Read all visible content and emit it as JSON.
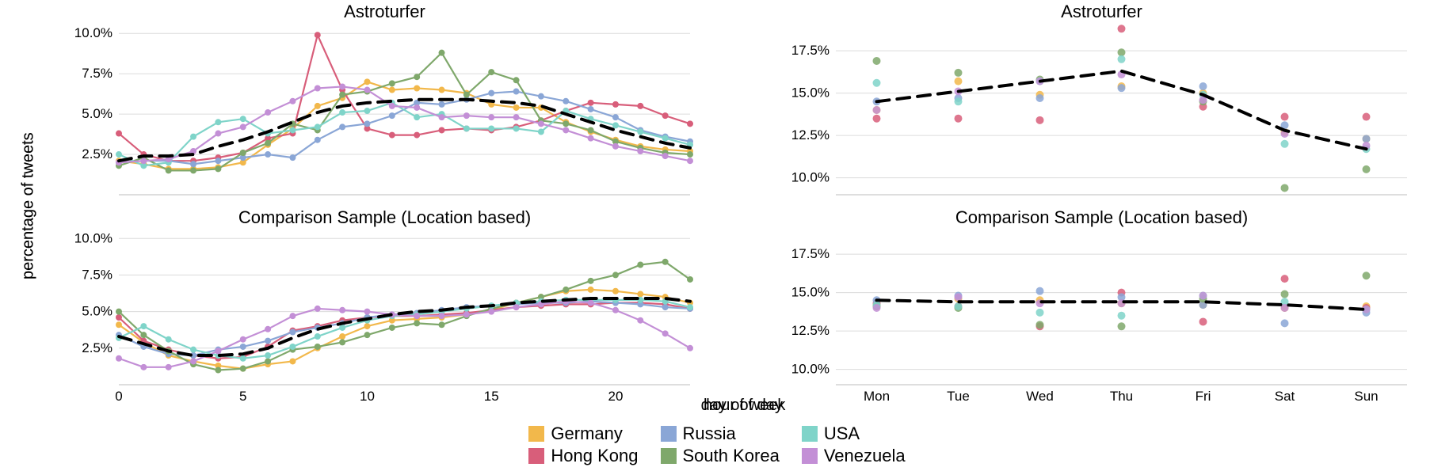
{
  "colors": {
    "Germany": "#f2b84b",
    "Hong Kong": "#d85e7a",
    "Russia": "#8aa6d6",
    "South Korea": "#7fa86b",
    "USA": "#7fd4c9",
    "Venezuela": "#c38fd6",
    "mean_line": "#000000",
    "grid": "#dcdcdc",
    "grid_dark": "#bcbcbc",
    "bg": "#ffffff"
  },
  "series_order": [
    "Germany",
    "Hong Kong",
    "Russia",
    "South Korea",
    "USA",
    "Venezuela"
  ],
  "legend": {
    "rows": [
      [
        "Germany",
        "Russia",
        "USA"
      ],
      [
        "Hong Kong",
        "South Korea",
        "Venezuela"
      ]
    ]
  },
  "style": {
    "title_fontsize": 22,
    "axis_label_fontsize": 20,
    "tick_fontsize": 17,
    "legend_fontsize": 22,
    "line_width": 2.2,
    "marker_radius": 4.0,
    "mean_line_width": 4.0,
    "mean_dash": "16,10"
  },
  "left_column": {
    "y_axis_label": "percentage of tweets",
    "x_axis_label": "hour of day",
    "x": {
      "min": 0,
      "max": 23,
      "ticks": [
        0,
        5,
        10,
        15,
        20
      ]
    },
    "y": {
      "min": 0,
      "max": 10.5,
      "ticks": [
        2.5,
        5.0,
        7.5,
        10.0
      ],
      "fmt": "pct1"
    },
    "panels": [
      {
        "title": "Astroturfer",
        "series": {
          "Germany": [
            2.1,
            1.9,
            1.6,
            1.6,
            1.7,
            2.0,
            3.1,
            4.1,
            5.5,
            6.0,
            7.0,
            6.5,
            6.6,
            6.5,
            6.3,
            5.6,
            5.4,
            5.4,
            4.5,
            3.9,
            3.4,
            3.0,
            2.8,
            2.7
          ],
          "Hong Kong": [
            3.8,
            2.5,
            2.1,
            2.1,
            2.3,
            2.6,
            3.5,
            3.8,
            9.9,
            6.5,
            4.1,
            3.7,
            3.7,
            4.0,
            4.1,
            4.0,
            4.2,
            4.6,
            5.2,
            5.7,
            5.6,
            5.5,
            4.9,
            4.4
          ],
          "Russia": [
            2.0,
            2.1,
            2.1,
            1.9,
            2.1,
            2.3,
            2.5,
            2.3,
            3.4,
            4.2,
            4.4,
            4.9,
            5.7,
            5.6,
            5.9,
            6.3,
            6.4,
            6.1,
            5.8,
            5.3,
            4.8,
            4.0,
            3.6,
            3.3
          ],
          "South Korea": [
            1.8,
            2.3,
            1.5,
            1.5,
            1.6,
            2.6,
            3.2,
            4.4,
            4.0,
            6.2,
            6.4,
            6.9,
            7.3,
            8.8,
            6.2,
            7.6,
            7.1,
            4.6,
            4.4,
            4.0,
            3.3,
            2.9,
            2.6,
            2.5
          ],
          "USA": [
            2.5,
            1.8,
            2.0,
            3.6,
            4.5,
            4.7,
            3.8,
            4.0,
            4.2,
            5.1,
            5.2,
            5.7,
            4.8,
            5.0,
            4.1,
            4.1,
            4.1,
            3.9,
            5.2,
            4.7,
            4.3,
            3.9,
            3.5,
            3.1
          ],
          "Venezuela": [
            2.0,
            2.1,
            2.2,
            2.7,
            3.8,
            4.2,
            5.1,
            5.8,
            6.6,
            6.7,
            6.5,
            5.5,
            5.4,
            4.8,
            4.9,
            4.8,
            4.8,
            4.4,
            4.0,
            3.5,
            3.0,
            2.7,
            2.4,
            2.1
          ]
        },
        "mean": [
          2.1,
          2.4,
          2.4,
          2.5,
          3.0,
          3.4,
          3.9,
          4.5,
          5.1,
          5.5,
          5.7,
          5.8,
          5.9,
          5.9,
          5.9,
          5.8,
          5.7,
          5.5,
          5.0,
          4.5,
          4.0,
          3.6,
          3.2,
          2.9
        ]
      },
      {
        "title": "Comparison Sample (Location based)",
        "series": {
          "Germany": [
            4.1,
            2.9,
            2.0,
            1.6,
            1.3,
            1.1,
            1.4,
            1.6,
            2.5,
            3.3,
            4.0,
            4.4,
            4.5,
            4.6,
            4.8,
            5.1,
            5.6,
            6.0,
            6.4,
            6.5,
            6.4,
            6.2,
            6.0,
            5.6
          ],
          "Hong Kong": [
            4.6,
            3.0,
            2.4,
            2.0,
            1.8,
            1.9,
            2.6,
            3.7,
            4.0,
            4.4,
            4.6,
            4.7,
            4.7,
            4.8,
            4.9,
            5.1,
            5.3,
            5.4,
            5.5,
            5.5,
            5.6,
            5.6,
            5.5,
            5.2
          ],
          "Russia": [
            3.4,
            2.6,
            2.1,
            2.0,
            2.4,
            2.6,
            3.0,
            3.6,
            3.9,
            4.2,
            4.6,
            4.8,
            4.9,
            5.1,
            5.3,
            5.4,
            5.5,
            5.6,
            5.6,
            5.7,
            5.6,
            5.5,
            5.3,
            5.2
          ],
          "South Korea": [
            5.0,
            3.4,
            2.3,
            1.4,
            1.0,
            1.1,
            1.6,
            2.4,
            2.6,
            2.9,
            3.4,
            3.9,
            4.2,
            4.1,
            4.7,
            5.2,
            5.6,
            6.0,
            6.5,
            7.1,
            7.5,
            8.2,
            8.4,
            7.2
          ],
          "USA": [
            3.2,
            4.0,
            3.1,
            2.4,
            2.0,
            1.8,
            2.0,
            2.6,
            3.3,
            3.9,
            4.4,
            4.7,
            4.8,
            5.0,
            5.2,
            5.4,
            5.6,
            5.7,
            5.8,
            5.8,
            5.8,
            5.8,
            5.7,
            5.3
          ],
          "Venezuela": [
            1.8,
            1.2,
            1.2,
            1.6,
            2.3,
            3.1,
            3.8,
            4.7,
            5.2,
            5.1,
            5.0,
            4.8,
            4.7,
            4.7,
            4.8,
            5.0,
            5.3,
            5.5,
            5.7,
            5.6,
            5.1,
            4.4,
            3.5,
            2.5
          ]
        },
        "mean": [
          3.3,
          2.8,
          2.3,
          2.0,
          2.0,
          2.1,
          2.5,
          3.2,
          3.8,
          4.2,
          4.5,
          4.8,
          5.0,
          5.1,
          5.3,
          5.4,
          5.6,
          5.7,
          5.8,
          5.9,
          5.9,
          5.9,
          5.9,
          5.7
        ]
      }
    ]
  },
  "right_column": {
    "y_axis_label": "percentage of tweets",
    "x_axis_label": "day of week",
    "x": {
      "categories": [
        "Mon",
        "Tue",
        "Wed",
        "Thu",
        "Fri",
        "Sat",
        "Sun"
      ]
    },
    "y": {
      "min": 9,
      "max": 19,
      "ticks": [
        10.0,
        12.5,
        15.0,
        17.5
      ],
      "fmt": "pct1"
    },
    "panels": [
      {
        "title": "Astroturfer",
        "series": {
          "Germany": [
            14.0,
            15.7,
            14.9,
            15.4,
            15.0,
            12.7,
            12.3
          ],
          "Hong Kong": [
            13.5,
            13.5,
            13.4,
            18.8,
            14.2,
            13.6,
            13.6
          ],
          "Russia": [
            14.5,
            14.7,
            14.7,
            15.3,
            15.4,
            13.1,
            12.3
          ],
          "South Korea": [
            16.9,
            16.2,
            15.8,
            17.4,
            14.5,
            9.4,
            10.5
          ],
          "USA": [
            15.6,
            14.5,
            15.7,
            17.0,
            14.9,
            12.0,
            11.7
          ],
          "Venezuela": [
            14.0,
            15.1,
            15.7,
            16.1,
            14.6,
            12.6,
            11.9
          ]
        },
        "mean": [
          14.5,
          15.1,
          15.7,
          16.3,
          14.9,
          12.8,
          11.7
        ]
      },
      {
        "title": "Comparison Sample (Location based)",
        "series": {
          "Germany": [
            14.2,
            14.6,
            14.5,
            14.3,
            14.2,
            14.0,
            14.1
          ],
          "Hong Kong": [
            14.3,
            14.1,
            12.8,
            15.0,
            13.1,
            15.9,
            14.0
          ],
          "Russia": [
            14.5,
            14.8,
            15.1,
            14.7,
            14.2,
            13.0,
            13.7
          ],
          "South Korea": [
            14.1,
            14.0,
            12.9,
            12.8,
            14.6,
            14.9,
            16.1
          ],
          "USA": [
            14.2,
            14.1,
            13.7,
            13.5,
            14.8,
            14.4,
            13.9
          ],
          "Venezuela": [
            14.0,
            14.7,
            14.3,
            14.3,
            14.8,
            14.0,
            13.9
          ]
        },
        "mean": [
          14.5,
          14.4,
          14.4,
          14.4,
          14.4,
          14.2,
          13.9
        ]
      }
    ]
  }
}
